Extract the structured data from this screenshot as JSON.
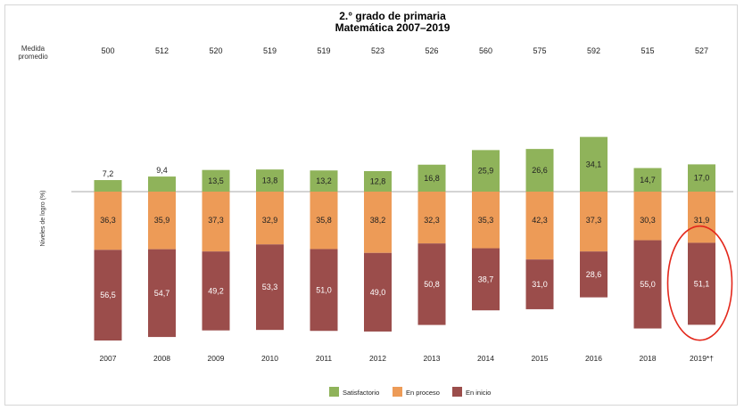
{
  "title_line1": "2.° grado de primaria",
  "title_line2": "Matemática 2007–2019",
  "avg_label": [
    "Medida",
    "promedio"
  ],
  "y_axis_label": "Niveles de logro (%)",
  "colors": {
    "satisfactorio": "#8fb35a",
    "en_proceso": "#ed9b57",
    "en_inicio": "#9b4d4b",
    "baseline": "#aaaaaa",
    "highlight": "#e3281c"
  },
  "chart_data": {
    "type": "bar",
    "stacked": true,
    "diverging": true,
    "categories": [
      "2007",
      "2008",
      "2009",
      "2010",
      "2011",
      "2012",
      "2013",
      "2014",
      "2015",
      "2016",
      "2018",
      "2019*†"
    ],
    "averages": [
      500,
      512,
      520,
      519,
      519,
      523,
      526,
      560,
      575,
      592,
      515,
      527
    ],
    "series": [
      {
        "name": "Satisfactorio",
        "values": [
          7.2,
          9.4,
          13.5,
          13.8,
          13.2,
          12.8,
          16.8,
          25.9,
          26.6,
          34.1,
          14.7,
          17.0
        ],
        "labels": [
          "7,2",
          "9,4",
          "13,5",
          "13,8",
          "13,2",
          "12,8",
          "16,8",
          "25,9",
          "26,6",
          "34,1",
          "14,7",
          "17,0"
        ]
      },
      {
        "name": "En proceso",
        "values": [
          36.3,
          35.9,
          37.3,
          32.9,
          35.8,
          38.2,
          32.3,
          35.3,
          42.3,
          37.3,
          30.3,
          31.9
        ],
        "labels": [
          "36,3",
          "35,9",
          "37,3",
          "32,9",
          "35,8",
          "38,2",
          "32,3",
          "35,3",
          "42,3",
          "37,3",
          "30,3",
          "31,9"
        ]
      },
      {
        "name": "En inicio",
        "values": [
          56.5,
          54.7,
          49.2,
          53.3,
          51.0,
          49.0,
          50.8,
          38.7,
          31.0,
          28.6,
          55.0,
          51.1
        ],
        "labels": [
          "56,5",
          "54,7",
          "49,2",
          "53,3",
          "51,0",
          "49,0",
          "50,8",
          "38,7",
          "31,0",
          "28,6",
          "55,0",
          "51,1"
        ]
      }
    ],
    "highlighted_category": "2019*†",
    "legend_position": "bottom"
  }
}
